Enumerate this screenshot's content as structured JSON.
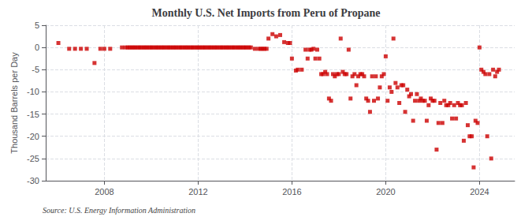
{
  "chart_data": {
    "type": "scatter",
    "title": "Monthly U.S. Net Imports from Peru of Propane",
    "ylabel": "Thousand Barrels per Day",
    "annotations": [
      "Source: U.S. Energy Information Administration"
    ],
    "color": "#cc0000",
    "marker": "square",
    "grid": true,
    "xlim": [
      2005.5,
      2025.5
    ],
    "xticks": [
      2008,
      2012,
      2016,
      2020,
      2024
    ],
    "ylim": [
      -30,
      5
    ],
    "yticks": [
      5,
      0,
      -5,
      -10,
      -15,
      -20,
      -25,
      -30
    ],
    "x": [
      2006.04,
      2006.5,
      2006.75,
      2007.0,
      2007.25,
      2007.58,
      2007.83,
      2008.0,
      2008.25,
      2008.75,
      2008.9,
      2009.0,
      2009.08,
      2009.17,
      2009.25,
      2009.33,
      2009.42,
      2009.5,
      2009.58,
      2009.67,
      2009.75,
      2009.83,
      2009.92,
      2010.0,
      2010.08,
      2010.17,
      2010.25,
      2010.33,
      2010.42,
      2010.5,
      2010.58,
      2010.67,
      2010.75,
      2010.83,
      2010.92,
      2011.0,
      2011.08,
      2011.17,
      2011.25,
      2011.33,
      2011.42,
      2011.5,
      2011.58,
      2011.67,
      2011.75,
      2011.83,
      2011.92,
      2012.0,
      2012.08,
      2012.17,
      2012.25,
      2012.33,
      2012.42,
      2012.5,
      2012.58,
      2012.67,
      2012.75,
      2012.83,
      2012.92,
      2013.0,
      2013.08,
      2013.17,
      2013.25,
      2013.33,
      2013.42,
      2013.5,
      2013.58,
      2013.67,
      2013.75,
      2013.83,
      2013.92,
      2014.0,
      2014.08,
      2014.17,
      2014.25,
      2014.42,
      2014.58,
      2014.67,
      2014.75,
      2014.83,
      2014.92,
      2015.0,
      2015.17,
      2015.33,
      2015.5,
      2015.67,
      2015.83,
      2015.92,
      2016.0,
      2016.17,
      2016.25,
      2016.42,
      2016.58,
      2016.67,
      2016.75,
      2016.83,
      2016.92,
      2017.0,
      2017.08,
      2017.17,
      2017.25,
      2017.33,
      2017.42,
      2017.5,
      2017.58,
      2017.67,
      2017.75,
      2017.83,
      2017.92,
      2018.0,
      2018.08,
      2018.17,
      2018.25,
      2018.33,
      2018.42,
      2018.5,
      2018.58,
      2018.67,
      2018.75,
      2018.83,
      2018.92,
      2019.0,
      2019.08,
      2019.17,
      2019.25,
      2019.33,
      2019.42,
      2019.5,
      2019.58,
      2019.67,
      2019.75,
      2019.83,
      2019.92,
      2020.0,
      2020.08,
      2020.17,
      2020.25,
      2020.33,
      2020.42,
      2020.5,
      2020.58,
      2020.67,
      2020.75,
      2020.83,
      2020.92,
      2021.0,
      2021.08,
      2021.17,
      2021.25,
      2021.33,
      2021.42,
      2021.5,
      2021.58,
      2021.67,
      2021.75,
      2021.83,
      2021.92,
      2022.0,
      2022.08,
      2022.17,
      2022.25,
      2022.33,
      2022.42,
      2022.5,
      2022.58,
      2022.67,
      2022.75,
      2022.83,
      2022.92,
      2023.0,
      2023.08,
      2023.17,
      2023.25,
      2023.33,
      2023.42,
      2023.5,
      2023.58,
      2023.67,
      2023.75,
      2023.83,
      2023.92,
      2024.0,
      2024.08,
      2024.17,
      2024.25,
      2024.33,
      2024.42,
      2024.5,
      2024.58,
      2024.67,
      2024.75,
      2024.83
    ],
    "values": [
      1.0,
      -0.3,
      -0.3,
      -0.3,
      -0.3,
      -3.5,
      -0.3,
      -0.3,
      -0.3,
      0,
      0,
      0,
      0,
      0,
      0,
      0,
      0,
      0,
      0,
      0,
      0,
      0,
      0,
      0,
      0,
      0,
      0,
      0,
      0,
      0,
      0,
      0,
      0,
      0,
      0,
      0,
      0,
      0,
      0,
      0,
      0,
      0,
      0,
      0,
      0,
      0,
      0,
      0,
      0,
      0,
      0,
      0,
      0,
      0,
      0,
      0,
      0,
      0,
      0,
      0,
      0,
      0,
      0,
      0,
      0,
      0,
      0,
      0,
      0,
      0,
      0,
      0,
      0,
      0,
      0,
      -0.3,
      -0.3,
      -0.3,
      -0.3,
      -0.3,
      -0.3,
      2.0,
      3.0,
      2.5,
      2.8,
      1.2,
      1.0,
      1.0,
      -2.5,
      -5.2,
      -5.0,
      -5.0,
      -0.5,
      -2.5,
      -0.5,
      -0.5,
      -0.3,
      -2.5,
      -0.5,
      -2.5,
      -6.0,
      -6.0,
      -5.5,
      -6.0,
      -11.5,
      -12.0,
      -6.0,
      -6.5,
      -6.0,
      -6.0,
      2.0,
      -5.5,
      -6.0,
      -6.0,
      -0.5,
      -11.5,
      -6.5,
      -6.0,
      -8.5,
      -6.5,
      -6.0,
      -6.0,
      -6.5,
      -11.5,
      -12.0,
      -14.5,
      -6.5,
      -12.0,
      -6.5,
      -11.5,
      -9.0,
      -6.5,
      -6.0,
      -2.0,
      -12.0,
      -9.0,
      -10.0,
      2.0,
      -8.0,
      -9.0,
      -12.5,
      -8.5,
      -8.5,
      -14.5,
      -9.5,
      -11.0,
      -10.5,
      -16.5,
      -12.0,
      -10.5,
      -12.0,
      -11.5,
      -12.0,
      -12.0,
      -16.5,
      -13.0,
      -11.5,
      -12.0,
      -12.0,
      -23.0,
      -17.0,
      -12.5,
      -17.0,
      -12.0,
      -13.0,
      -13.0,
      -12.5,
      -16.0,
      -13.0,
      -16.0,
      -12.5,
      -13.0,
      -13.0,
      -21.0,
      -12.5,
      -17.5,
      -20.0,
      -20.0,
      -27.0,
      -16.5,
      -17.0,
      0.0,
      -5.0,
      -5.5,
      -6.0,
      -20.0,
      -6.0,
      -25.0,
      -5.0,
      -6.5,
      -5.5,
      -5.0
    ]
  }
}
